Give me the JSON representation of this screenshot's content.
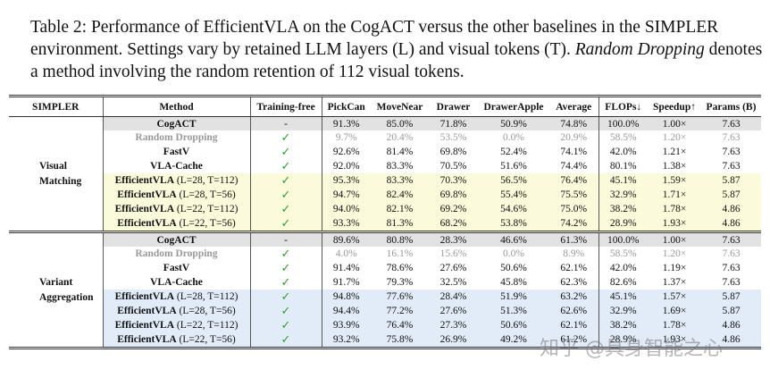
{
  "caption": {
    "label": "Table 2:",
    "text_before": "Performance of EfficientVLA on the CogACT versus the other baselines in the SIMPLER environment. Settings vary by retained LLM layers (L) and visual tokens (T).",
    "emphasis": "Random Dropping",
    "text_after": "denotes a method involving the random retention of 112 visual tokens."
  },
  "table": {
    "header": [
      "SIMPLER",
      "Method",
      "Training-free",
      "PickCan",
      "MoveNear",
      "Drawer",
      "DrawerApple",
      "Average",
      "FLOPs↓",
      "Speedup↑",
      "Params (B)"
    ],
    "groups": [
      {
        "label": [
          "Visual",
          "Matching"
        ],
        "highlight": "#fbfada",
        "rows": [
          {
            "name": "CogACT",
            "setting": null,
            "cells": [
              "-",
              "91.3%",
              "85.0%",
              "71.8%",
              "50.9%",
              "74.8%",
              "100.0%",
              "1.00×",
              "7.63"
            ]
          },
          {
            "name": "Random Dropping",
            "setting": null,
            "cells": [
              "✓",
              "9.7%",
              "20.4%",
              "53.5%",
              "0.0%",
              "20.9%",
              "58.5%",
              "1.20×",
              "7.63"
            ]
          },
          {
            "name": "FastV",
            "setting": null,
            "cells": [
              "✓",
              "92.6%",
              "81.4%",
              "69.8%",
              "52.4%",
              "74.1%",
              "42.0%",
              "1.21×",
              "7.63"
            ]
          },
          {
            "name": "VLA-Cache",
            "setting": null,
            "cells": [
              "✓",
              "92.0%",
              "83.3%",
              "70.5%",
              "51.6%",
              "74.4%",
              "80.1%",
              "1.38×",
              "7.63"
            ]
          },
          {
            "name": "EfficientVLA",
            "setting": "(L=28, T=112)",
            "cells": [
              "✓",
              "95.3%",
              "83.3%",
              "70.3%",
              "56.5%",
              "76.4%",
              "45.1%",
              "1.59×",
              "5.87"
            ]
          },
          {
            "name": "EfficientVLA",
            "setting": "(L=28, T=56)",
            "cells": [
              "✓",
              "94.7%",
              "82.4%",
              "69.8%",
              "55.4%",
              "75.5%",
              "32.9%",
              "1.71×",
              "5.87"
            ]
          },
          {
            "name": "EfficientVLA",
            "setting": "(L=22, T=112)",
            "cells": [
              "✓",
              "94.0%",
              "82.1%",
              "69.2%",
              "54.6%",
              "75.0%",
              "38.2%",
              "1.78×",
              "4.86"
            ]
          },
          {
            "name": "EfficientVLA",
            "setting": "(L=22, T=56)",
            "cells": [
              "✓",
              "93.3%",
              "81.3%",
              "68.2%",
              "53.8%",
              "74.2%",
              "28.9%",
              "1.93×",
              "4.86"
            ]
          }
        ]
      },
      {
        "label": [
          "Variant",
          "Aggregation"
        ],
        "highlight": "#e2ecf8",
        "rows": [
          {
            "name": "CogACT",
            "setting": null,
            "cells": [
              "-",
              "89.6%",
              "80.8%",
              "28.3%",
              "46.6%",
              "61.3%",
              "100.0%",
              "1.00×",
              "7.63"
            ]
          },
          {
            "name": "Random Dropping",
            "setting": null,
            "cells": [
              "✓",
              "4.0%",
              "16.1%",
              "15.6%",
              "0.0%",
              "8.9%",
              "58.5%",
              "1.20×",
              "7.63"
            ]
          },
          {
            "name": "FastV",
            "setting": null,
            "cells": [
              "✓",
              "91.4%",
              "78.6%",
              "27.6%",
              "50.6%",
              "62.1%",
              "42.0%",
              "1.19×",
              "7.63"
            ]
          },
          {
            "name": "VLA-Cache",
            "setting": null,
            "cells": [
              "✓",
              "91.7%",
              "79.3%",
              "32.5%",
              "45.8%",
              "62.3%",
              "82.6%",
              "1.37×",
              "7.63"
            ]
          },
          {
            "name": "EfficientVLA",
            "setting": "(L=28, T=112)",
            "cells": [
              "✓",
              "94.8%",
              "77.6%",
              "28.4%",
              "51.9%",
              "63.2%",
              "45.1%",
              "1.57×",
              "5.87"
            ]
          },
          {
            "name": "EfficientVLA",
            "setting": "(L=28, T=56)",
            "cells": [
              "✓",
              "94.4%",
              "77.2%",
              "27.6%",
              "51.3%",
              "62.6%",
              "32.9%",
              "1.69×",
              "5.87"
            ]
          },
          {
            "name": "EfficientVLA",
            "setting": "(L=22, T=112)",
            "cells": [
              "✓",
              "93.9%",
              "76.4%",
              "27.3%",
              "50.6%",
              "62.1%",
              "38.2%",
              "1.78×",
              "4.86"
            ]
          },
          {
            "name": "EfficientVLA",
            "setting": "(L=22, T=56)",
            "cells": [
              "✓",
              "93.2%",
              "75.8%",
              "26.9%",
              "49.2%",
              "61.2%",
              "28.9%",
              "1.93×",
              "4.86"
            ]
          }
        ]
      }
    ]
  },
  "watermark": "知乎 @具身智能之心"
}
